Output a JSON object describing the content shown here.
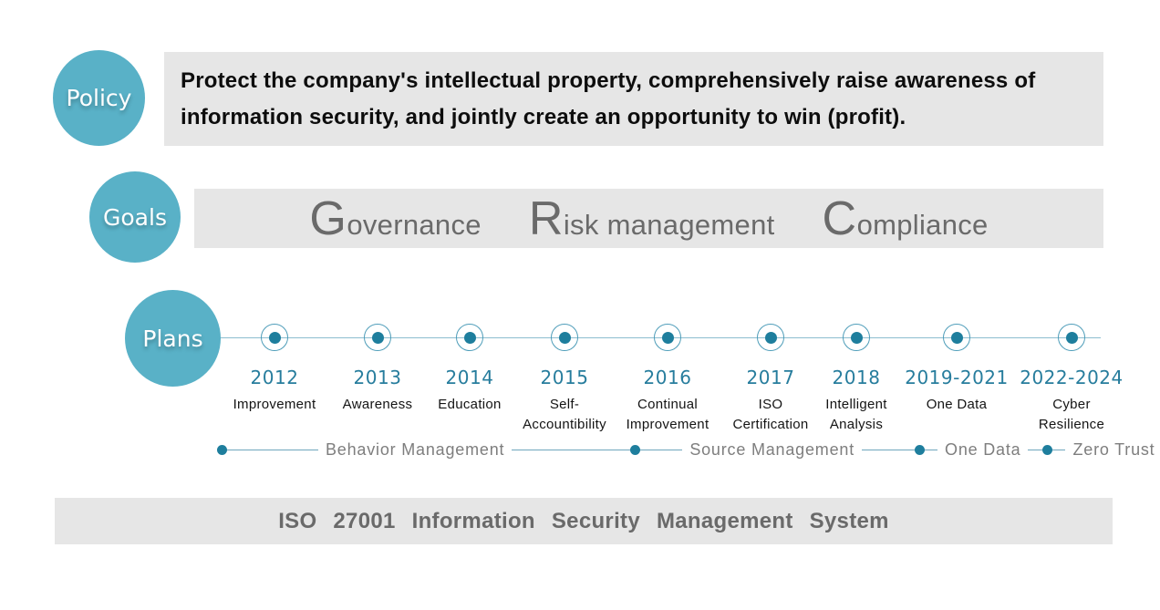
{
  "policy": {
    "label": "Policy",
    "line1": "Protect the company's intellectual property, comprehensively raise awareness of",
    "line2": "information security, and jointly create an opportunity to win (profit)."
  },
  "goals": {
    "label": "Goals",
    "items": [
      {
        "initial": "G",
        "rest": "overnance"
      },
      {
        "initial": "R",
        "rest": "isk management"
      },
      {
        "initial": "C",
        "rest": "ompliance"
      }
    ]
  },
  "plans": {
    "label": "Plans",
    "milestones": [
      {
        "year": "2012",
        "label": "Improvement"
      },
      {
        "year": "2013",
        "label": "Awareness"
      },
      {
        "year": "2014",
        "label": "Education"
      },
      {
        "year": "2015",
        "label": "Self-\nAccountibility"
      },
      {
        "year": "2016",
        "label": "Continual\nImprovement"
      },
      {
        "year": "2017",
        "label": "ISO\nCertification"
      },
      {
        "year": "2018",
        "label": "Intelligent\nAnalysis"
      },
      {
        "year": "2019-2021",
        "label": "One Data"
      },
      {
        "year": "2022-2024",
        "label": "Cyber\nResilience"
      }
    ],
    "phases": [
      "Behavior Management",
      "Source Management",
      "One Data",
      "Zero Trust"
    ]
  },
  "footer": {
    "title": "ISO 27001 Information Security Management System"
  },
  "colors": {
    "bubble_teal": "#59b1c7",
    "dot_teal": "#1e7e9d",
    "line_teal": "#8cbed0",
    "year_teal": "#277d9d",
    "panel_gray": "#e6e6e6",
    "muted_text": "#6a6a6a"
  }
}
